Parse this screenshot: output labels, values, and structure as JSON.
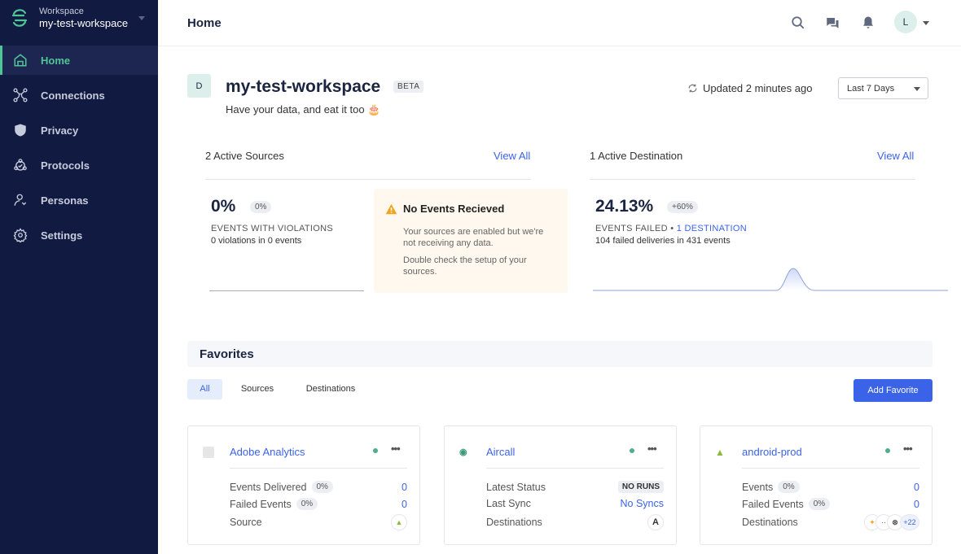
{
  "sidebar": {
    "workspace_label": "Workspace",
    "workspace_name": "my-test-workspace",
    "items": [
      {
        "label": "Home",
        "icon": "home-icon"
      },
      {
        "label": "Connections",
        "icon": "connections-icon"
      },
      {
        "label": "Privacy",
        "icon": "shield-icon"
      },
      {
        "label": "Protocols",
        "icon": "protocols-icon"
      },
      {
        "label": "Personas",
        "icon": "personas-icon"
      },
      {
        "label": "Settings",
        "icon": "gear-icon"
      }
    ]
  },
  "header": {
    "title": "Home",
    "avatar": "L"
  },
  "workspace": {
    "badge": "D",
    "name": "my-test-workspace",
    "beta": "BETA",
    "tagline": "Have your data, and eat it too 🎂",
    "updated": "Updated 2 minutes ago",
    "range": "Last 7 Days"
  },
  "sources": {
    "title": "2 Active Sources",
    "view_all": "View All",
    "value": "0%",
    "change": "0%",
    "label": "EVENTS WITH VIOLATIONS",
    "detail": "0 violations in 0 events"
  },
  "warning": {
    "title": "No Events Recieved",
    "p1": "Your sources are enabled but we're not receiving any data.",
    "p2": "Double check the setup of your sources."
  },
  "destinations": {
    "title": "1 Active Destination",
    "view_all": "View All",
    "value": "24.13%",
    "change": "+60%",
    "label": "EVENTS FAILED",
    "sep": "•",
    "link": "1 DESTINATION",
    "detail": "104 failed deliveries in 431 events"
  },
  "favorites": {
    "title": "Favorites",
    "tabs": [
      "All",
      "Sources",
      "Destinations"
    ],
    "add": "Add Favorite",
    "cards": [
      {
        "name": "Adobe Analytics",
        "rows": [
          {
            "label": "Events Delivered",
            "pill": "0%",
            "value": "0"
          },
          {
            "label": "Failed Events",
            "pill": "0%",
            "value": "0"
          },
          {
            "label": "Source"
          }
        ]
      },
      {
        "name": "Aircall",
        "rows": [
          {
            "label": "Latest Status",
            "value": "NO RUNS"
          },
          {
            "label": "Last Sync",
            "value": "No Syncs"
          },
          {
            "label": "Destinations"
          }
        ]
      },
      {
        "name": "android-prod",
        "rows": [
          {
            "label": "Events",
            "pill": "0%",
            "value": "0"
          },
          {
            "label": "Failed Events",
            "pill": "0%",
            "value": "0"
          },
          {
            "label": "Destinations",
            "more": "+22"
          }
        ]
      }
    ]
  },
  "colors": {
    "sidebar": "#111a40",
    "accent": "#4fc596",
    "link": "#3b63e8"
  }
}
